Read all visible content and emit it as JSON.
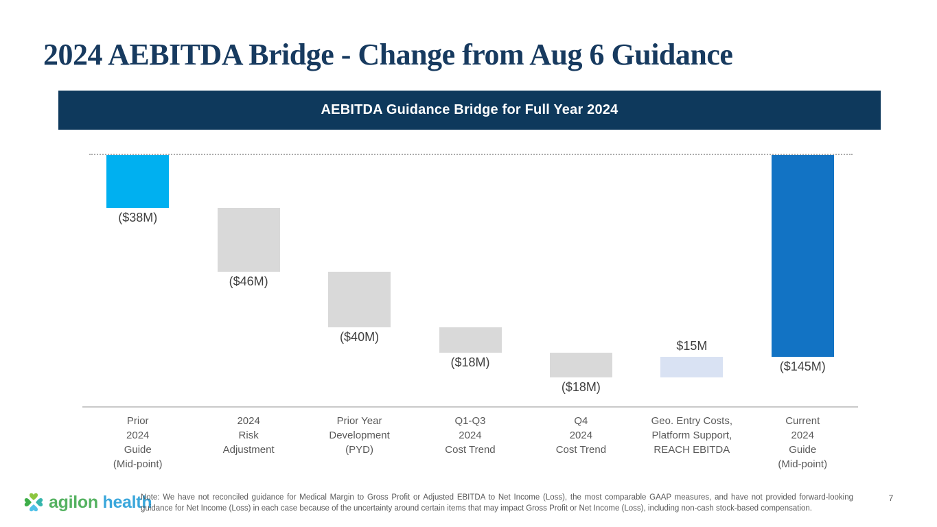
{
  "slide": {
    "title": "2024 AEBITDA Bridge - Change from Aug 6 Guidance",
    "page_number": "7",
    "note_line1": "Note: We have not reconciled guidance for Medical Margin to Gross Profit or Adjusted EBITDA to Net Income (Loss), the most comparable GAAP measures, and have not provided forward-looking",
    "note_line2": "guidance for Net Income (Loss) in each case because of the uncertainty around certain items that may impact Gross Profit or Net Income (Loss), including non-cash stock-based compensation.",
    "logo_word1": "agilon",
    "logo_word2": "health"
  },
  "colors": {
    "title_navy": "#173A5F",
    "banner_navy": "#0E395C",
    "start_bar_cyan": "#00B0F0",
    "decrease_bar_gray": "#D9D9D9",
    "increase_bar_light_blue": "#D9E2F3",
    "total_bar_blue": "#1273C4",
    "value_label_gray": "#404040",
    "category_label_gray": "#595959",
    "logo_green": "#55B261",
    "logo_blue": "#3BA7DB"
  },
  "chart_data": {
    "type": "bar",
    "subtype": "waterfall",
    "title": "AEBITDA Guidance Bridge for Full Year 2024",
    "unit": "USD millions",
    "ylim": [
      -165,
      0
    ],
    "grid": false,
    "zero_line_style": "dotted",
    "legend": "none",
    "categories": [
      [
        "Prior",
        "2024",
        "Guide",
        "(Mid-point)"
      ],
      [
        "2024",
        "Risk",
        "Adjustment"
      ],
      [
        "Prior Year",
        "Development",
        "(PYD)"
      ],
      [
        "Q1-Q3",
        "2024",
        "Cost Trend"
      ],
      [
        "Q4",
        "2024",
        "Cost Trend"
      ],
      [
        "Geo. Entry Costs,",
        "Platform Support,",
        "REACH EBITDA"
      ],
      [
        "Current",
        "2024",
        "Guide",
        "(Mid-point)"
      ]
    ],
    "steps": [
      {
        "value": -38,
        "display": "($38M)",
        "role": "start",
        "color": "#00B0F0",
        "label_position": "below"
      },
      {
        "value": -46,
        "display": "($46M)",
        "role": "decrease",
        "color": "#D9D9D9",
        "label_position": "below"
      },
      {
        "value": -40,
        "display": "($40M)",
        "role": "decrease",
        "color": "#D9D9D9",
        "label_position": "below"
      },
      {
        "value": -18,
        "display": "($18M)",
        "role": "decrease",
        "color": "#D9D9D9",
        "label_position": "below"
      },
      {
        "value": -18,
        "display": "($18M)",
        "role": "decrease",
        "color": "#D9D9D9",
        "label_position": "below"
      },
      {
        "value": 15,
        "display": "$15M",
        "role": "increase",
        "color": "#D9E2F3",
        "label_position": "above"
      },
      {
        "value": -145,
        "display": "($145M)",
        "role": "total",
        "color": "#1273C4",
        "label_position": "below"
      }
    ]
  }
}
